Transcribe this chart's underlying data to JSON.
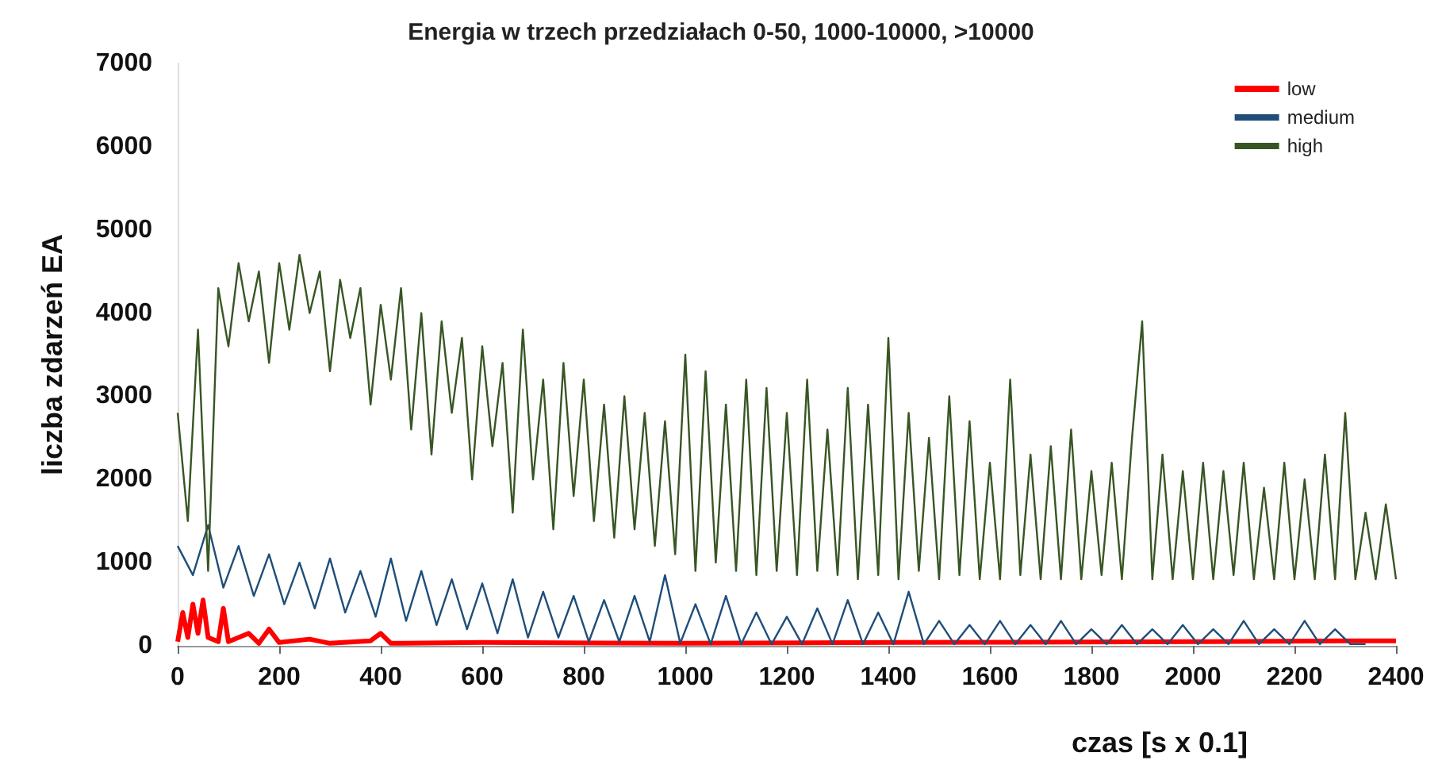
{
  "chart_data": {
    "type": "line",
    "title": "Energia w trzech przedziałach 0-50, 1000-10000, >10000",
    "xlabel": "czas [s x 0.1]",
    "ylabel": "liczba zdarzeń EA",
    "xlim": [
      0,
      2400
    ],
    "xticks": [
      0,
      200,
      400,
      600,
      800,
      1000,
      1200,
      1400,
      1600,
      1800,
      2000,
      2200,
      2400
    ],
    "ylim": [
      0,
      7000
    ],
    "yticks": [
      0,
      1000,
      2000,
      3000,
      4000,
      5000,
      6000,
      7000
    ],
    "grid": false,
    "legend": "top right",
    "marker": "none",
    "series": [
      {
        "name": "high",
        "color": "#375623",
        "x": [
          0,
          20,
          40,
          60,
          80,
          100,
          120,
          140,
          160,
          180,
          200,
          220,
          240,
          260,
          280,
          300,
          320,
          340,
          360,
          380,
          400,
          420,
          440,
          460,
          480,
          500,
          520,
          540,
          560,
          580,
          600,
          620,
          640,
          660,
          680,
          700,
          720,
          740,
          760,
          780,
          800,
          820,
          840,
          860,
          880,
          900,
          920,
          940,
          960,
          980,
          1000,
          1020,
          1040,
          1060,
          1080,
          1100,
          1120,
          1140,
          1160,
          1180,
          1200,
          1220,
          1240,
          1260,
          1280,
          1300,
          1320,
          1340,
          1360,
          1380,
          1400,
          1420,
          1440,
          1460,
          1480,
          1500,
          1520,
          1540,
          1560,
          1580,
          1600,
          1620,
          1640,
          1660,
          1680,
          1700,
          1720,
          1740,
          1760,
          1780,
          1800,
          1820,
          1840,
          1860,
          1880,
          1900,
          1920,
          1940,
          1960,
          1980,
          2000,
          2020,
          2040,
          2060,
          2080,
          2100,
          2120,
          2140,
          2160,
          2180,
          2200,
          2220,
          2240,
          2260,
          2280,
          2300,
          2320,
          2340,
          2360,
          2380,
          2400
        ],
        "values": [
          2800,
          1500,
          3800,
          900,
          4300,
          3600,
          4600,
          3900,
          4500,
          3400,
          4600,
          3800,
          4700,
          4000,
          4500,
          3300,
          4400,
          3700,
          4300,
          2900,
          4100,
          3200,
          4300,
          2600,
          4000,
          2300,
          3900,
          2800,
          3700,
          2000,
          3600,
          2400,
          3400,
          1600,
          3800,
          2000,
          3200,
          1400,
          3400,
          1800,
          3200,
          1500,
          2900,
          1300,
          3000,
          1400,
          2800,
          1200,
          2700,
          1100,
          3500,
          900,
          3300,
          1000,
          2900,
          900,
          3200,
          850,
          3100,
          900,
          2800,
          850,
          3200,
          900,
          2600,
          850,
          3100,
          800,
          2900,
          850,
          3700,
          800,
          2800,
          900,
          2500,
          800,
          3000,
          850,
          2700,
          800,
          2200,
          800,
          3200,
          850,
          2300,
          800,
          2400,
          800,
          2600,
          800,
          2100,
          850,
          2200,
          800,
          2500,
          3900,
          800,
          2300,
          800,
          2100,
          800,
          2200,
          800,
          2100,
          850,
          2200,
          800,
          1900,
          800,
          2200,
          800,
          2000,
          800,
          2300,
          800,
          2800,
          800,
          1600,
          800,
          1700,
          800
        ]
      },
      {
        "name": "medium",
        "color": "#1f4e79",
        "x": [
          0,
          30,
          60,
          90,
          120,
          150,
          180,
          210,
          240,
          270,
          300,
          330,
          360,
          390,
          420,
          450,
          480,
          510,
          540,
          570,
          600,
          630,
          660,
          690,
          720,
          750,
          780,
          810,
          840,
          870,
          900,
          930,
          960,
          990,
          1020,
          1050,
          1080,
          1110,
          1140,
          1170,
          1200,
          1230,
          1260,
          1290,
          1320,
          1350,
          1380,
          1410,
          1440,
          1470,
          1500,
          1530,
          1560,
          1590,
          1620,
          1650,
          1680,
          1710,
          1740,
          1770,
          1800,
          1830,
          1860,
          1890,
          1920,
          1950,
          1980,
          2010,
          2040,
          2070,
          2100,
          2130,
          2160,
          2190,
          2220,
          2250,
          2280,
          2310,
          2340
        ],
        "values": [
          1200,
          850,
          1450,
          700,
          1200,
          600,
          1100,
          500,
          1000,
          450,
          1050,
          400,
          900,
          350,
          1050,
          300,
          900,
          250,
          800,
          200,
          750,
          150,
          800,
          100,
          650,
          100,
          600,
          50,
          550,
          50,
          600,
          50,
          850,
          30,
          500,
          20,
          600,
          20,
          400,
          20,
          350,
          20,
          450,
          20,
          550,
          20,
          400,
          20,
          650,
          20,
          300,
          20,
          250,
          20,
          300,
          20,
          250,
          20,
          300,
          20,
          200,
          20,
          250,
          20,
          200,
          20,
          250,
          20,
          200,
          20,
          300,
          20,
          200,
          20,
          300,
          20,
          200,
          20,
          20
        ]
      },
      {
        "name": "low",
        "color": "#ff0000",
        "x": [
          0,
          10,
          20,
          30,
          40,
          50,
          60,
          80,
          90,
          100,
          140,
          160,
          180,
          200,
          260,
          300,
          380,
          400,
          420,
          600,
          1000,
          1400,
          2000,
          2300,
          2400
        ],
        "values": [
          50,
          400,
          100,
          500,
          150,
          550,
          100,
          50,
          450,
          50,
          150,
          30,
          200,
          40,
          80,
          30,
          60,
          150,
          30,
          40,
          30,
          40,
          50,
          60,
          60
        ]
      }
    ]
  }
}
